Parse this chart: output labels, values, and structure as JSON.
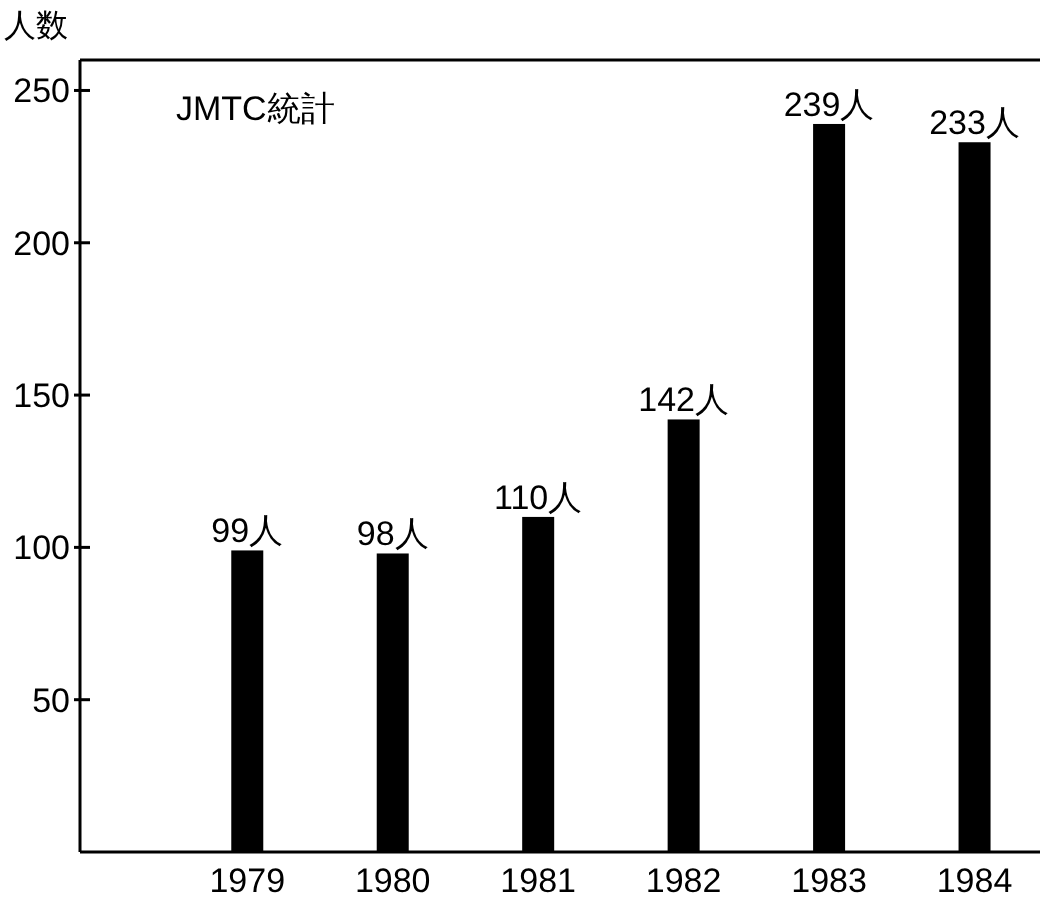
{
  "chart_data": {
    "type": "bar",
    "ylabel": "人数",
    "annotations": [
      "JMTC統計"
    ],
    "categories": [
      "1979",
      "1980",
      "1981",
      "1982",
      "1983",
      "1984"
    ],
    "values": [
      99,
      98,
      110,
      142,
      239,
      233
    ],
    "value_labels": [
      "99人",
      "98人",
      "110人",
      "142人",
      "239人",
      "233人"
    ],
    "color": "#000000",
    "ylim": [
      0,
      260
    ],
    "yticks": [
      50,
      100,
      150,
      200,
      250
    ]
  }
}
